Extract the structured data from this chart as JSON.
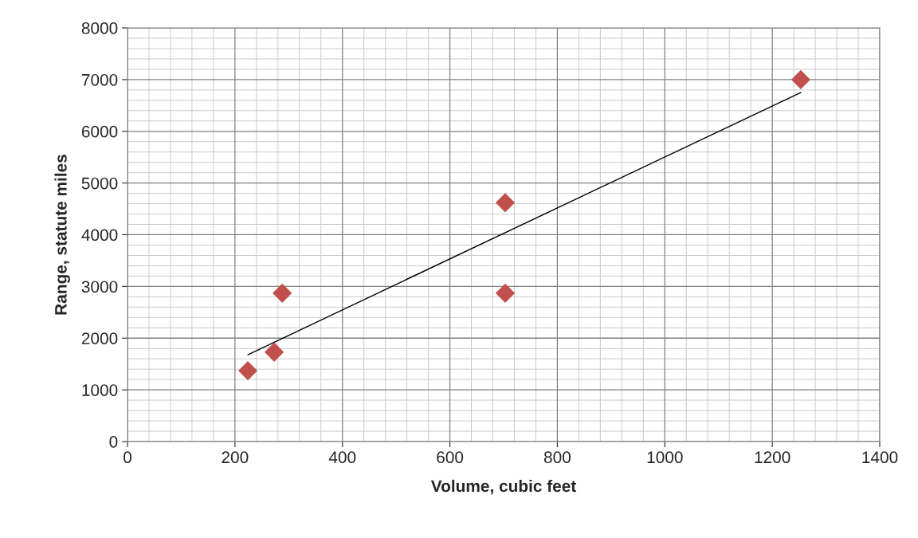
{
  "chart_data": {
    "type": "scatter",
    "xlabel": "Volume, cubic feet",
    "ylabel": "Range, statute miles",
    "x": [
      224,
      273,
      288,
      703,
      703,
      1253
    ],
    "series": [
      {
        "color": "#c0504d",
        "marker": "diamond",
        "values": [
          1370,
          1730,
          2870,
          4620,
          2870,
          7000
        ]
      },
      {
        "type": "line",
        "color": "#000000",
        "marker": "none",
        "x": [
          224,
          1253
        ],
        "values": [
          1680,
          6750
        ]
      }
    ],
    "xlim": [
      0,
      1400
    ],
    "xticks": [
      0,
      200,
      400,
      600,
      800,
      1000,
      1200,
      1400
    ],
    "ylim": [
      0,
      8000
    ],
    "yticks": [
      0,
      1000,
      2000,
      3000,
      4000,
      5000,
      6000,
      7000,
      8000
    ],
    "grid": true,
    "legend": false
  }
}
